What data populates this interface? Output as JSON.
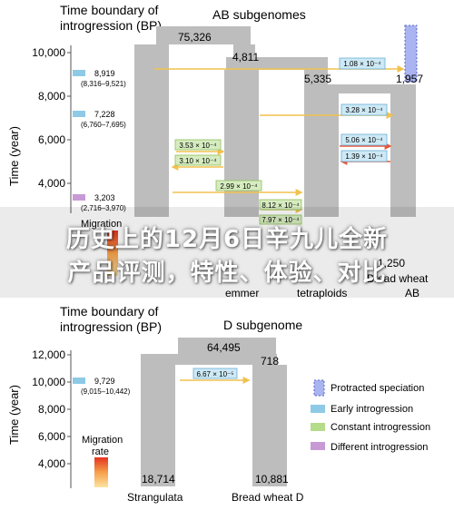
{
  "top_panel": {
    "legend_title_line1": "Time boundary of",
    "legend_title_line2": "introgression (BP)",
    "subgenome_title": "AB subgenomes",
    "y_axis_label": "Time (year)",
    "y_ticks": [
      "10,000",
      "8,000",
      "6,000",
      "4,000"
    ],
    "boundaries": [
      {
        "value": "8,919",
        "range": "(8,316–9,521)",
        "color": "#8ecae6"
      },
      {
        "value": "7,228",
        "range": "(6,760–7,695)",
        "color": "#8ecae6"
      },
      {
        "value": "3,203",
        "range": "(2,716–3,970)",
        "color": "#c79ad6"
      }
    ],
    "nodes": [
      "75,326",
      "4,811",
      "5,335",
      "1,957"
    ],
    "rates": [
      "1.08 × 10⁻⁴",
      "3.28 × 10⁻⁴",
      "3.53 × 10⁻⁴",
      "5.06 × 10⁻⁴",
      "3.10 × 10⁻⁴",
      "1.39 × 10⁻⁴",
      "2.99 × 10⁻⁴",
      "8.12 × 10⁻⁴",
      "7.97 × 10⁻⁴"
    ],
    "partial_labels": [
      "Migration",
      "emmer",
      "tetraploids",
      "1,250",
      "Bread wheat",
      "AB"
    ]
  },
  "banner": {
    "line1": "历史上的12月6日辛九儿全新",
    "line2": "产品评测，特性、体验、对比"
  },
  "bottom_panel": {
    "legend_title_line1": "Time boundary of",
    "legend_title_line2": "introgression (BP)",
    "subgenome_title": "D subgenome",
    "y_axis_label": "Time (year)",
    "y_ticks": [
      "12,000",
      "10,000",
      "8,000",
      "6,000",
      "4,000"
    ],
    "boundary": {
      "value": "9,729",
      "range": "(9,015–10,442)"
    },
    "nodes": [
      "64,495",
      "718"
    ],
    "rate": "6.67 × 10⁻⁵",
    "migration_label_line1": "Migration",
    "migration_label_line2": "rate",
    "tips": [
      {
        "count": "18,714",
        "name": "Strangulata"
      },
      {
        "count": "10,881",
        "name": "Bread wheat D"
      }
    ]
  },
  "legend": {
    "items": [
      {
        "label": "Protracted speciation",
        "color": "#a9b4f0"
      },
      {
        "label": "Early introgression",
        "color": "#8ecae6"
      },
      {
        "label": "Constant introgression",
        "color": "#b5dc8a"
      },
      {
        "label": "Different introgression",
        "color": "#c79ad6"
      }
    ]
  },
  "colors": {
    "branch": "#bdbdbd",
    "arrow_yellow": "#f2c14e",
    "arrow_red": "#e8553a",
    "box_blue": "#cde9f5",
    "box_green": "#d6ecc0"
  }
}
